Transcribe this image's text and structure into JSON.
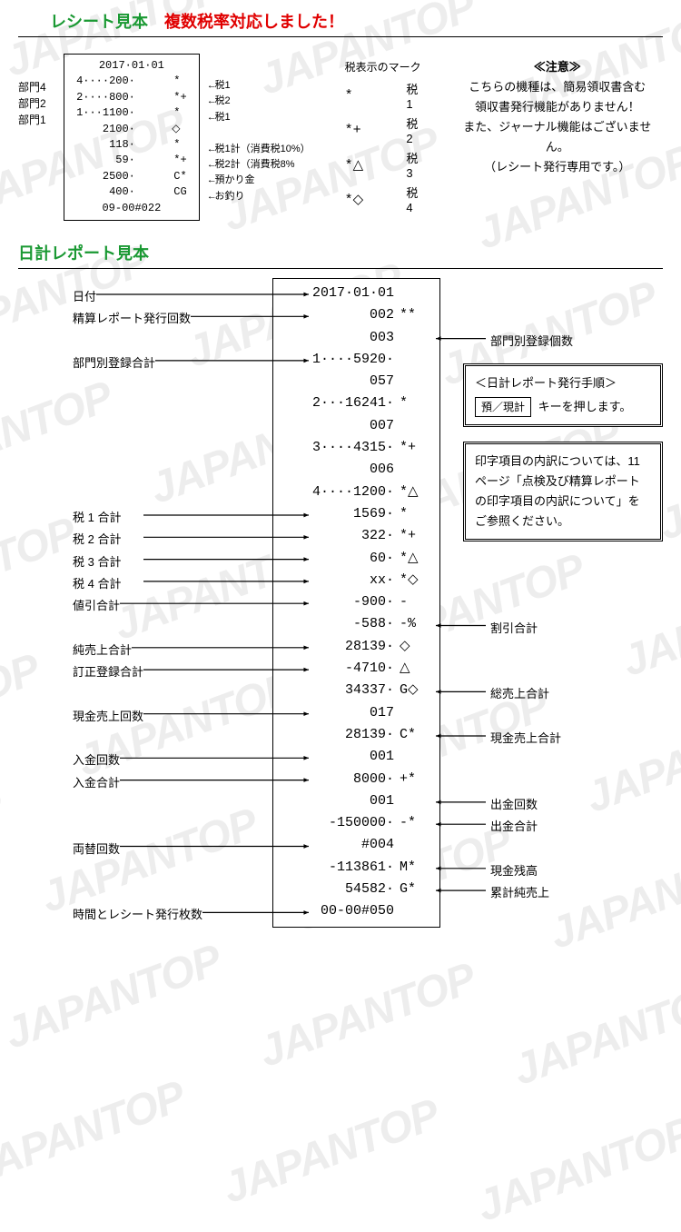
{
  "watermark_text": "JAPANTOP",
  "section1": {
    "title_left": "レシート見本",
    "title_right": "複数税率対応しました！",
    "colors": {
      "green": "#1a9933",
      "red": "#e00000"
    }
  },
  "receipt_sample": {
    "date": "2017·01·01",
    "rows": [
      {
        "left": "4····200·",
        "mark": "*",
        "label": "税1",
        "side": "部門4"
      },
      {
        "left": "2····800·",
        "mark": "*+",
        "label": "税2",
        "side": "部門2"
      },
      {
        "left": "1···1100·",
        "mark": "*",
        "label": "税1",
        "side": "部門1"
      },
      {
        "left": "2100·",
        "mark": "◇",
        "label": ""
      },
      {
        "left": "118·",
        "mark": "*",
        "label": "税1計（消費税10%）"
      },
      {
        "left": "59·",
        "mark": "*+",
        "label": "税2計（消費税8%"
      },
      {
        "left": "2500·",
        "mark": "C*",
        "label": "預かり金"
      },
      {
        "left": "400·",
        "mark": "CG",
        "label": "お釣り"
      }
    ],
    "footer": "09-00#022"
  },
  "mark_table": {
    "header": "税表示のマーク",
    "rows": [
      {
        "mark": "*",
        "label": "税1"
      },
      {
        "mark": "*+",
        "label": "税2"
      },
      {
        "mark": "*△",
        "label": "税3"
      },
      {
        "mark": "*◇",
        "label": "税4"
      }
    ]
  },
  "notice": {
    "heading": "≪注意≫",
    "lines": [
      "こちらの機種は、簡易領収書含む",
      "領収書発行機能がありません！",
      "また、ジャーナル機能はございません。",
      "（レシート発行専用です。）"
    ]
  },
  "section2_title": "日計レポート見本",
  "report": {
    "lines": [
      {
        "v": "2017·01·01",
        "m": ""
      },
      {
        "v": "002",
        "m": "**"
      },
      {
        "v": "003",
        "m": ""
      },
      {
        "v": "1····5920·",
        "m": ""
      },
      {
        "v": "057",
        "m": ""
      },
      {
        "v": "2···16241·",
        "m": "*"
      },
      {
        "v": "007",
        "m": ""
      },
      {
        "v": "3····4315·",
        "m": "*+"
      },
      {
        "v": "006",
        "m": ""
      },
      {
        "v": "4····1200·",
        "m": "*△"
      },
      {
        "v": "1569·",
        "m": "*"
      },
      {
        "v": "322·",
        "m": "*+"
      },
      {
        "v": "60·",
        "m": "*△"
      },
      {
        "v": "xx·",
        "m": "*◇"
      },
      {
        "v": "-900·",
        "m": "-"
      },
      {
        "v": "-588·",
        "m": "-%"
      },
      {
        "v": "28139·",
        "m": "◇"
      },
      {
        "v": "-4710·",
        "m": "△"
      },
      {
        "v": "34337·",
        "m": "G◇"
      },
      {
        "v": "017",
        "m": ""
      },
      {
        "v": "28139·",
        "m": "C*"
      },
      {
        "v": "001",
        "m": ""
      },
      {
        "v": "8000·",
        "m": "+*"
      },
      {
        "v": "001",
        "m": ""
      },
      {
        "v": "-150000·",
        "m": "-*"
      },
      {
        "v": "#004",
        "m": ""
      },
      {
        "v": "-113861·",
        "m": "M*"
      },
      {
        "v": "54582·",
        "m": "G*"
      },
      {
        "v": "00-00#050",
        "m": ""
      }
    ]
  },
  "left_labels": [
    {
      "text": "日付",
      "row": 0
    },
    {
      "text": "精算レポート発行回数",
      "row": 1
    },
    {
      "text": "部門別登録合計",
      "row": 3
    },
    {
      "text": "税 1 合計",
      "row": 10
    },
    {
      "text": "税 2 合計",
      "row": 11
    },
    {
      "text": "税 3 合計",
      "row": 12
    },
    {
      "text": "税 4 合計",
      "row": 13
    },
    {
      "text": "値引合計",
      "row": 14
    },
    {
      "text": "純売上合計",
      "row": 16
    },
    {
      "text": "訂正登録合計",
      "row": 17
    },
    {
      "text": "現金売上回数",
      "row": 19
    },
    {
      "text": "入金回数",
      "row": 21
    },
    {
      "text": "入金合計",
      "row": 22
    },
    {
      "text": "両替回数",
      "row": 25
    },
    {
      "text": "時間とレシート発行枚数",
      "row": 28
    }
  ],
  "right_labels": [
    {
      "text": "部門別登録個数",
      "row": 2
    },
    {
      "text": "割引合計",
      "row": 15
    },
    {
      "text": "総売上合計",
      "row": 18
    },
    {
      "text": "現金売上合計",
      "row": 20
    },
    {
      "text": "出金回数",
      "row": 23
    },
    {
      "text": "出金合計",
      "row": 24
    },
    {
      "text": "現金残高",
      "row": 26
    },
    {
      "text": "累計純売上",
      "row": 27
    }
  ],
  "box1": {
    "title": "＜日計レポート発行手順＞",
    "key": "預／現計",
    "tail": "キーを押します。"
  },
  "box2": {
    "text": "印字項目の内訳については、11ページ「点検及び精算レポートの印字項目の内訳について」をご参照ください。"
  }
}
